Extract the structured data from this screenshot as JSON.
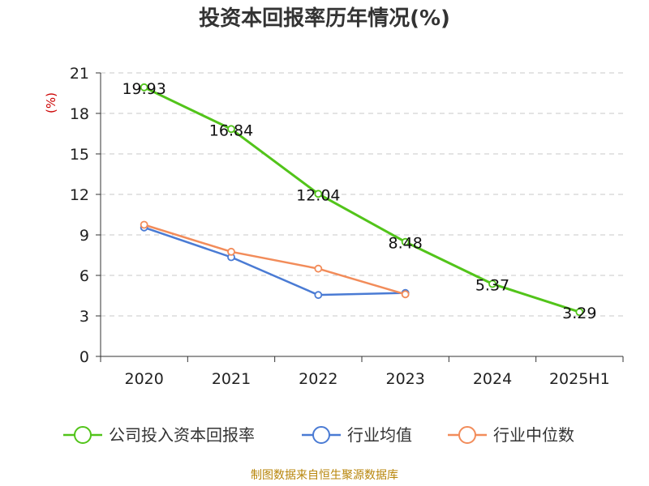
{
  "chart_data": {
    "type": "line",
    "title": "投资本回报率历年情况(%)",
    "ylabel": "(%)",
    "categories": [
      "2020",
      "2021",
      "2022",
      "2023",
      "2024",
      "2025H1"
    ],
    "ylim": [
      0,
      21
    ],
    "yticks": [
      0,
      3,
      6,
      9,
      12,
      15,
      18,
      21
    ],
    "grid": true,
    "legend_position": "bottom",
    "series": [
      {
        "name": "公司投入资本回报率",
        "color": "#52c41a",
        "values": [
          19.93,
          16.84,
          12.04,
          8.48,
          5.37,
          3.29
        ],
        "labels": [
          "19.93",
          "16.84",
          "12.04",
          "8.48",
          "5.37",
          "3.29"
        ]
      },
      {
        "name": "行业均值",
        "color": "#4a7bd4",
        "values": [
          9.55,
          7.35,
          4.55,
          4.7,
          null,
          null
        ]
      },
      {
        "name": "行业中位数",
        "color": "#f28c5a",
        "values": [
          9.75,
          7.75,
          6.5,
          4.6,
          null,
          null
        ]
      }
    ]
  },
  "source": "制图数据来自恒生聚源数据库"
}
